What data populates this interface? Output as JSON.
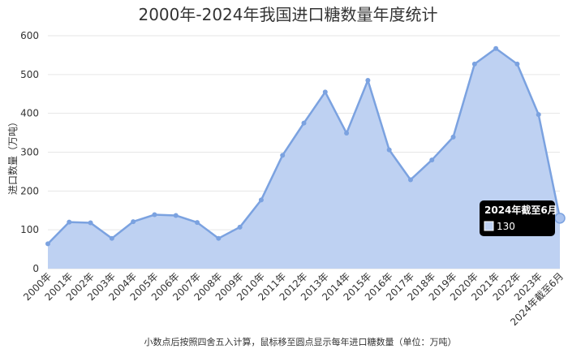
{
  "chart_data": {
    "type": "area",
    "title": "2000年-2024年我国进口糖数量年度统计",
    "ylabel": "进口数量（万吨）",
    "xlabel": "",
    "ylim": [
      0,
      600
    ],
    "yticks": [
      0,
      100,
      200,
      300,
      400,
      500,
      600
    ],
    "grid": true,
    "categories": [
      "2000年",
      "2001年",
      "2002年",
      "2003年",
      "2004年",
      "2005年",
      "2006年",
      "2007年",
      "2008年",
      "2009年",
      "2010年",
      "2011年",
      "2012年",
      "2013年",
      "2014年",
      "2015年",
      "2016年",
      "2017年",
      "2018年",
      "2019年",
      "2020年",
      "2021年",
      "2022年",
      "2023年",
      "2024年截至6月"
    ],
    "series": [
      {
        "values": [
          64,
          120,
          118,
          78,
          121,
          139,
          137,
          119,
          78,
          107,
          177,
          292,
          375,
          455,
          349,
          485,
          306,
          229,
          280,
          339,
          527,
          567,
          527,
          397,
          130
        ]
      }
    ],
    "colors": {
      "line": "#7ba2e0",
      "fill": "#bed1f2",
      "grid": "#e6e6e6",
      "point": "#7ba2e0"
    },
    "tooltip": {
      "title": "2024年截至6月",
      "value": "130"
    }
  },
  "footnote": "小数点后按照四舍五入计算，鼠标移至圆点显示每年进口糖数量（单位：万吨）"
}
